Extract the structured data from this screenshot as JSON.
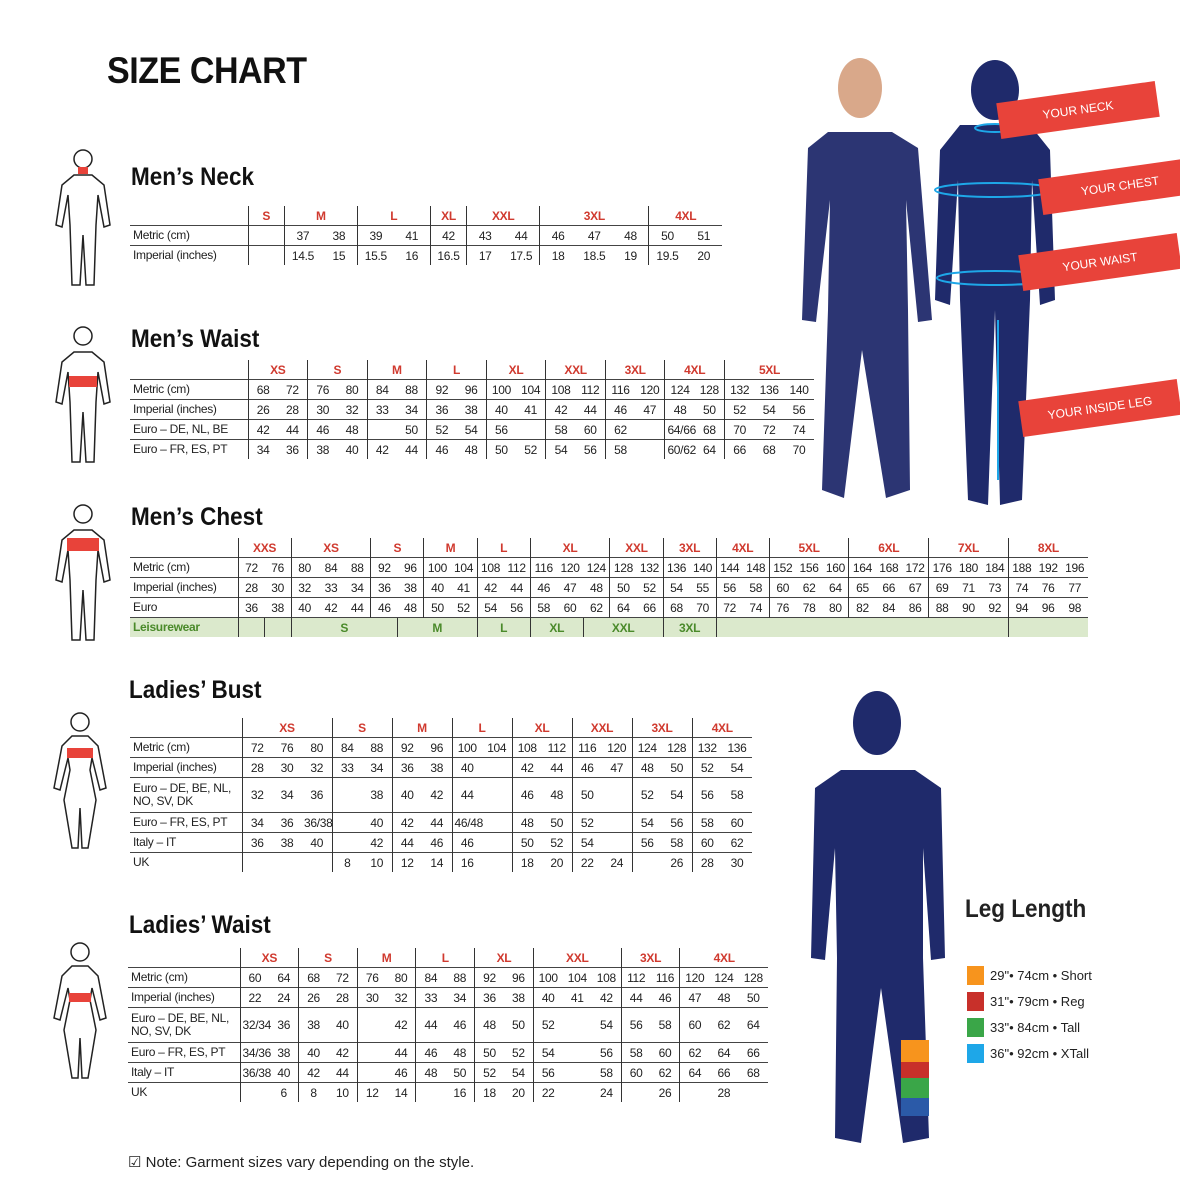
{
  "title": "SIZE CHART",
  "note": "Note: Garment sizes vary depending on the style.",
  "callouts": [
    "YOUR NECK",
    "YOUR CHEST",
    "YOUR WAIST",
    "YOUR INSIDE LEG"
  ],
  "accent_color": "#d03a2f",
  "callout_color": "#e8433a",
  "garment_color": "#1f2a6b",
  "leg_length": {
    "title": "Leg Length",
    "items": [
      {
        "label": "29\"• 74cm • Short",
        "color": "#f7941d"
      },
      {
        "label": "31\"• 79cm • Reg",
        "color": "#c8302a"
      },
      {
        "label": "33\"• 84cm • Tall",
        "color": "#3aa648"
      },
      {
        "label": "36\"• 92cm • XTall",
        "color": "#1ea7e8"
      }
    ]
  },
  "tables": {
    "mens_neck": {
      "title": "Men’s Neck",
      "groups": [
        [
          "S",
          1
        ],
        [
          "M",
          2
        ],
        [
          "L",
          2
        ],
        [
          "XL",
          1
        ],
        [
          "XXL",
          2
        ],
        [
          "3XL",
          3
        ],
        [
          "4XL",
          2
        ]
      ],
      "rows": [
        {
          "label": "Metric (cm)",
          "cells": [
            "",
            "37",
            "38",
            "39",
            "41",
            "42",
            "43",
            "44",
            "46",
            "47",
            "48",
            "50",
            "51"
          ]
        },
        {
          "label": "Imperial (inches)",
          "cells": [
            "",
            "14.5",
            "15",
            "15.5",
            "16",
            "16.5",
            "17",
            "17.5",
            "18",
            "18.5",
            "19",
            "19.5",
            "20"
          ]
        }
      ]
    },
    "mens_waist": {
      "title": "Men’s Waist",
      "groups": [
        [
          "XS",
          2
        ],
        [
          "S",
          2
        ],
        [
          "M",
          2
        ],
        [
          "L",
          2
        ],
        [
          "XL",
          2
        ],
        [
          "XXL",
          2
        ],
        [
          "3XL",
          2
        ],
        [
          "4XL",
          2
        ],
        [
          "5XL",
          3
        ]
      ],
      "rows": [
        {
          "label": "Metric (cm)",
          "cells": [
            "68",
            "72",
            "76",
            "80",
            "84",
            "88",
            "92",
            "96",
            "100",
            "104",
            "108",
            "112",
            "116",
            "120",
            "124",
            "128",
            "132",
            "136",
            "140"
          ]
        },
        {
          "label": "Imperial (inches)",
          "cells": [
            "26",
            "28",
            "30",
            "32",
            "33",
            "34",
            "36",
            "38",
            "40",
            "41",
            "42",
            "44",
            "46",
            "47",
            "48",
            "50",
            "52",
            "54",
            "56"
          ]
        },
        {
          "label": "Euro – DE, NL, BE",
          "cells": [
            "42",
            "44",
            "46",
            "48",
            "",
            "50",
            "52",
            "54",
            "56",
            "",
            "58",
            "60",
            "62",
            "",
            "64/66",
            "68",
            "70",
            "72",
            "74"
          ]
        },
        {
          "label": "Euro – FR, ES, PT",
          "cells": [
            "34",
            "36",
            "38",
            "40",
            "42",
            "44",
            "46",
            "48",
            "50",
            "52",
            "54",
            "56",
            "58",
            "",
            "60/62",
            "64",
            "66",
            "68",
            "70"
          ]
        }
      ]
    },
    "mens_chest": {
      "title": "Men’s Chest",
      "groups": [
        [
          "XXS",
          2
        ],
        [
          "XS",
          3
        ],
        [
          "S",
          2
        ],
        [
          "M",
          2
        ],
        [
          "L",
          2
        ],
        [
          "XL",
          3
        ],
        [
          "XXL",
          2
        ],
        [
          "3XL",
          2
        ],
        [
          "4XL",
          2
        ],
        [
          "5XL",
          3
        ],
        [
          "6XL",
          3
        ],
        [
          "7XL",
          3
        ],
        [
          "8XL",
          3
        ]
      ],
      "rows": [
        {
          "label": "Metric (cm)",
          "cells": [
            "72",
            "76",
            "80",
            "84",
            "88",
            "92",
            "96",
            "100",
            "104",
            "108",
            "112",
            "116",
            "120",
            "124",
            "128",
            "132",
            "136",
            "140",
            "144",
            "148",
            "152",
            "156",
            "160",
            "164",
            "168",
            "172",
            "176",
            "180",
            "184",
            "188",
            "192",
            "196"
          ]
        },
        {
          "label": "Imperial (inches)",
          "cells": [
            "28",
            "30",
            "32",
            "33",
            "34",
            "36",
            "38",
            "40",
            "41",
            "42",
            "44",
            "46",
            "47",
            "48",
            "50",
            "52",
            "54",
            "55",
            "56",
            "58",
            "60",
            "62",
            "64",
            "65",
            "66",
            "67",
            "69",
            "71",
            "73",
            "74",
            "76",
            "77"
          ]
        },
        {
          "label": "Euro",
          "cells": [
            "36",
            "38",
            "40",
            "42",
            "44",
            "46",
            "48",
            "50",
            "52",
            "54",
            "56",
            "58",
            "60",
            "62",
            "64",
            "66",
            "68",
            "70",
            "72",
            "74",
            "76",
            "78",
            "80",
            "82",
            "84",
            "86",
            "88",
            "90",
            "92",
            "94",
            "96",
            "98"
          ]
        }
      ],
      "leisurewear": {
        "label": "Leisurewear",
        "spans": [
          [
            "",
            1
          ],
          [
            "",
            1
          ],
          [
            "S",
            4
          ],
          [
            "M",
            3
          ],
          [
            "L",
            2
          ],
          [
            "XL",
            2
          ],
          [
            "XXL",
            3
          ],
          [
            "3XL",
            2
          ],
          [
            "",
            11
          ],
          [
            "",
            3
          ]
        ]
      }
    },
    "ladies_bust": {
      "title": "Ladies’ Bust",
      "groups": [
        [
          "XS",
          3
        ],
        [
          "S",
          2
        ],
        [
          "M",
          2
        ],
        [
          "L",
          2
        ],
        [
          "XL",
          2
        ],
        [
          "XXL",
          2
        ],
        [
          "3XL",
          2
        ],
        [
          "4XL",
          2
        ]
      ],
      "rows": [
        {
          "label": "Metric (cm)",
          "cells": [
            "72",
            "76",
            "80",
            "84",
            "88",
            "92",
            "96",
            "100",
            "104",
            "108",
            "112",
            "116",
            "120",
            "124",
            "128",
            "132",
            "136"
          ]
        },
        {
          "label": "Imperial (inches)",
          "cells": [
            "28",
            "30",
            "32",
            "33",
            "34",
            "36",
            "38",
            "40",
            "",
            "42",
            "44",
            "46",
            "47",
            "48",
            "50",
            "52",
            "54"
          ]
        },
        {
          "label": "Euro –  DE, BE, NL, NO, SV, DK",
          "tall": true,
          "cells": [
            "32",
            "34",
            "36",
            "",
            "38",
            "40",
            "42",
            "44",
            "",
            "46",
            "48",
            "50",
            "",
            "52",
            "54",
            "56",
            "58"
          ]
        },
        {
          "label": "Euro – FR, ES, PT",
          "cells": [
            "34",
            "36",
            "36/38",
            "",
            "40",
            "42",
            "44",
            "46/48",
            "",
            "48",
            "50",
            "52",
            "",
            "54",
            "56",
            "58",
            "60"
          ]
        },
        {
          "label": "Italy – IT",
          "cells": [
            "36",
            "38",
            "40",
            "",
            "42",
            "44",
            "46",
            "46",
            "",
            "50",
            "52",
            "54",
            "",
            "56",
            "58",
            "60",
            "62"
          ]
        },
        {
          "label": "UK",
          "cells": [
            "",
            "",
            "",
            "8",
            "10",
            "12",
            "14",
            "16",
            "",
            "18",
            "20",
            "22",
            "24",
            "",
            "26",
            "28",
            "30"
          ]
        }
      ]
    },
    "ladies_waist": {
      "title": "Ladies’ Waist",
      "groups": [
        [
          "XS",
          2
        ],
        [
          "S",
          2
        ],
        [
          "M",
          2
        ],
        [
          "L",
          2
        ],
        [
          "XL",
          2
        ],
        [
          "XXL",
          3
        ],
        [
          "3XL",
          2
        ],
        [
          "4XL",
          3
        ]
      ],
      "rows": [
        {
          "label": "Metric (cm)",
          "cells": [
            "60",
            "64",
            "68",
            "72",
            "76",
            "80",
            "84",
            "88",
            "92",
            "96",
            "100",
            "104",
            "108",
            "112",
            "116",
            "120",
            "124",
            "128"
          ]
        },
        {
          "label": "Imperial (inches)",
          "cells": [
            "22",
            "24",
            "26",
            "28",
            "30",
            "32",
            "33",
            "34",
            "36",
            "38",
            "40",
            "41",
            "42",
            "44",
            "46",
            "47",
            "48",
            "50"
          ]
        },
        {
          "label": "Euro – DE, BE, NL, NO, SV, DK",
          "tall": true,
          "cells": [
            "32/34",
            "36",
            "38",
            "40",
            "",
            "42",
            "44",
            "46",
            "48",
            "50",
            "52",
            "",
            "54",
            "56",
            "58",
            "60",
            "62",
            "64"
          ]
        },
        {
          "label": "Euro – FR, ES, PT",
          "cells": [
            "34/36",
            "38",
            "40",
            "42",
            "",
            "44",
            "46",
            "48",
            "50",
            "52",
            "54",
            "",
            "56",
            "58",
            "60",
            "62",
            "64",
            "66"
          ]
        },
        {
          "label": "Italy – IT",
          "cells": [
            "36/38",
            "40",
            "42",
            "44",
            "",
            "46",
            "48",
            "50",
            "52",
            "54",
            "56",
            "",
            "58",
            "60",
            "62",
            "64",
            "66",
            "68"
          ]
        },
        {
          "label": "UK",
          "cells": [
            "",
            "6",
            "8",
            "10",
            "12",
            "14",
            "",
            "16",
            "18",
            "20",
            "22",
            "",
            "24",
            "",
            "26",
            "",
            "28",
            ""
          ]
        }
      ]
    }
  }
}
